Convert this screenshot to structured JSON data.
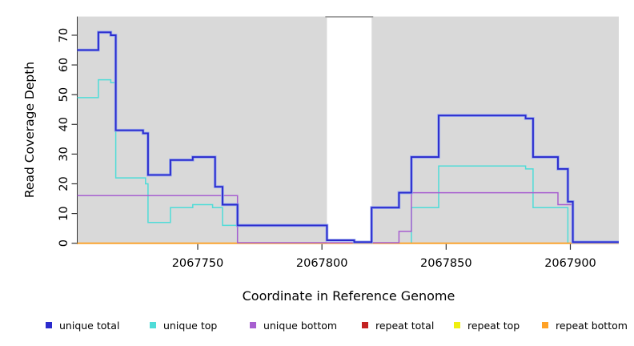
{
  "chart_data": {
    "type": "line",
    "subtype": "step-coverage",
    "title": "",
    "xlabel": "Coordinate in Reference Genome",
    "ylabel": "Read Coverage Depth",
    "xlim": [
      2067701.5,
      2067919.5
    ],
    "ylim": [
      0,
      76.3
    ],
    "x_ticks": [
      2067750,
      2067800,
      2067850,
      2067900
    ],
    "y_ticks": [
      0,
      10,
      20,
      30,
      40,
      50,
      60,
      70
    ],
    "grid": false,
    "legend_position": "bottom",
    "background_color": "#d9d9d9",
    "axis_color": "#333333",
    "masked_region": {
      "x0": 2067802,
      "x1": 2067820,
      "fill": "#ffffff",
      "top_bar_color": "#9b9b9b"
    },
    "series": [
      {
        "name": "unique total",
        "color": "#2b2bcd",
        "halo": "#96a8ee",
        "steps": [
          [
            2067701.5,
            65
          ],
          [
            2067710,
            71
          ],
          [
            2067715,
            70
          ],
          [
            2067717,
            38
          ],
          [
            2067728,
            37
          ],
          [
            2067730,
            23
          ],
          [
            2067739,
            28
          ],
          [
            2067748,
            29
          ],
          [
            2067757,
            19
          ],
          [
            2067760,
            13
          ],
          [
            2067766,
            6
          ],
          [
            2067802,
            1
          ],
          [
            2067813,
            0
          ],
          [
            2067820,
            12
          ],
          [
            2067831,
            17
          ],
          [
            2067836,
            29
          ],
          [
            2067847,
            43
          ],
          [
            2067882,
            42
          ],
          [
            2067885,
            29
          ],
          [
            2067895,
            25
          ],
          [
            2067899,
            14
          ],
          [
            2067901,
            0
          ]
        ]
      },
      {
        "name": "unique top",
        "color": "#4fdcd8",
        "steps": [
          [
            2067701.5,
            49
          ],
          [
            2067710,
            55
          ],
          [
            2067715,
            54
          ],
          [
            2067717,
            22
          ],
          [
            2067729,
            20
          ],
          [
            2067730,
            7
          ],
          [
            2067739,
            12
          ],
          [
            2067748,
            13
          ],
          [
            2067756,
            12
          ],
          [
            2067760,
            6
          ],
          [
            2067766,
            0
          ],
          [
            2067836,
            12
          ],
          [
            2067847,
            26
          ],
          [
            2067882,
            25
          ],
          [
            2067885,
            12
          ],
          [
            2067899,
            0
          ]
        ]
      },
      {
        "name": "unique bottom",
        "color": "#a75fd0",
        "steps": [
          [
            2067701.5,
            16
          ],
          [
            2067766,
            0
          ],
          [
            2067831,
            4
          ],
          [
            2067836,
            17
          ],
          [
            2067895,
            13
          ],
          [
            2067901,
            0
          ]
        ]
      },
      {
        "name": "repeat total",
        "color": "#c32222",
        "steps": [
          [
            2067701.5,
            0
          ]
        ]
      },
      {
        "name": "repeat top",
        "color": "#efef10",
        "steps": [
          [
            2067701.5,
            0
          ]
        ]
      },
      {
        "name": "repeat bottom",
        "color": "#ffa226",
        "steps": [
          [
            2067701.5,
            0
          ]
        ]
      }
    ]
  }
}
